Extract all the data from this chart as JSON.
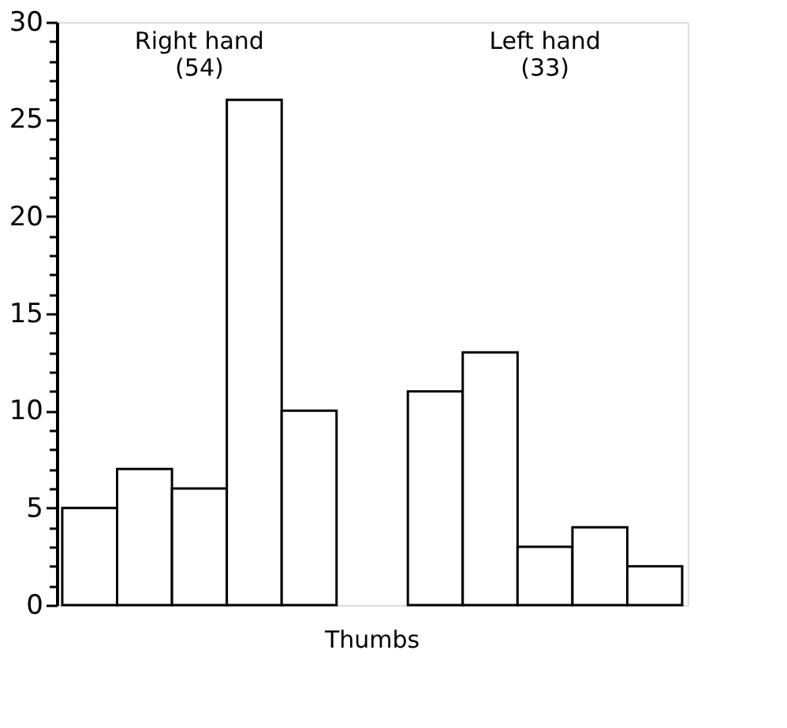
{
  "chart_data": {
    "type": "bar",
    "categories": [
      null,
      null,
      null,
      null,
      null,
      null,
      null,
      null,
      null,
      null
    ],
    "values": [
      5,
      7,
      6,
      26,
      10,
      11,
      13,
      3,
      4,
      2
    ],
    "color": "#ffffff",
    "ylim": [
      0,
      30
    ],
    "yticks": [
      0,
      {
        "value": 1,
        "label": null
      },
      {
        "value": 2,
        "label": null
      },
      {
        "value": 3,
        "label": null
      },
      {
        "value": 4,
        "label": null
      },
      5,
      {
        "value": 6,
        "label": null
      },
      {
        "value": 7,
        "label": null
      },
      {
        "value": 8,
        "label": null
      },
      {
        "value": 9,
        "label": null
      },
      10,
      {
        "value": 11,
        "label": null
      },
      {
        "value": 12,
        "label": null
      },
      {
        "value": 13,
        "label": null
      },
      {
        "value": 14,
        "label": null
      },
      15,
      {
        "value": 16,
        "label": null
      },
      {
        "value": 17,
        "label": null
      },
      {
        "value": 18,
        "label": null
      },
      {
        "value": 19,
        "label": null
      },
      20,
      {
        "value": 21,
        "label": null
      },
      {
        "value": 22,
        "label": null
      },
      {
        "value": 23,
        "label": null
      },
      {
        "value": 24,
        "label": null
      },
      25,
      {
        "value": 26,
        "label": null
      },
      {
        "value": 27,
        "label": null
      },
      {
        "value": 28,
        "label": null
      },
      {
        "value": 29,
        "label": null
      },
      30
    ],
    "annotations": [
      "Right hand",
      "(54)",
      "Left hand",
      "(33)",
      "Thumbs"
    ],
    "grid": false
  }
}
